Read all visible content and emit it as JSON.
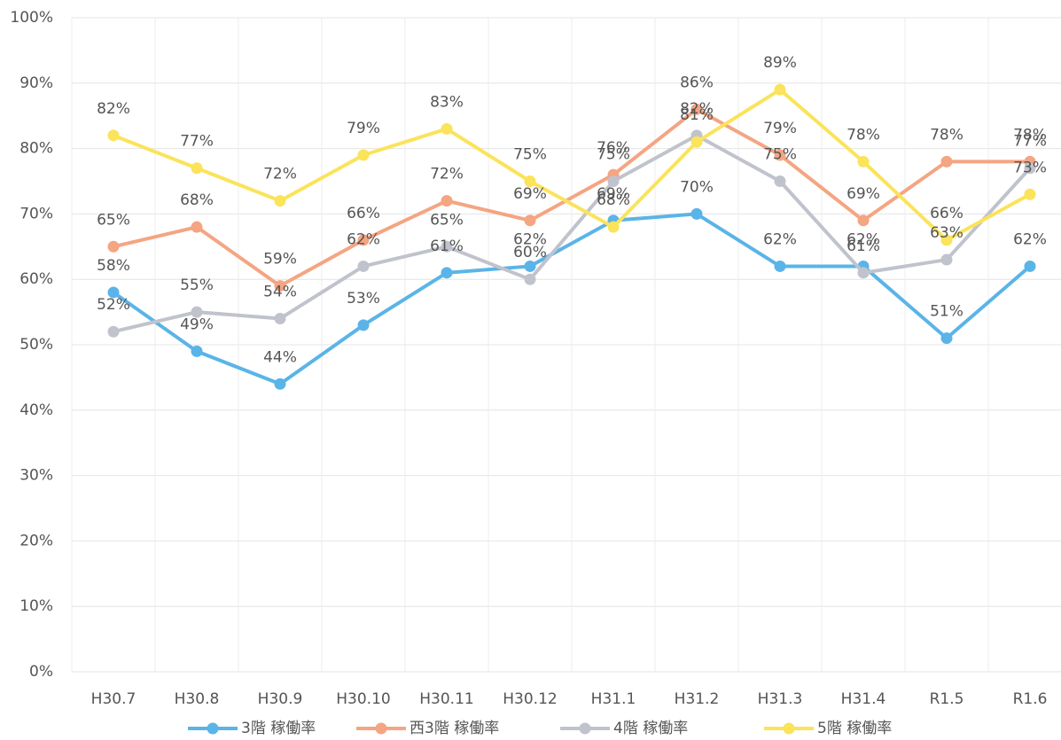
{
  "chart_data": {
    "type": "line",
    "categories": [
      "H30.7",
      "H30.8",
      "H30.9",
      "H30.10",
      "H30.11",
      "H30.12",
      "H31.1",
      "H31.2",
      "H31.3",
      "H31.4",
      "R1.5",
      "R1.6"
    ],
    "series": [
      {
        "name": "3階 稼働率",
        "color": "#5ab4e8",
        "values": [
          58,
          49,
          44,
          53,
          61,
          62,
          69,
          70,
          62,
          62,
          51,
          62
        ],
        "value_labels": [
          "58%",
          "49%",
          "44%",
          "53%",
          "61%",
          "62%",
          "69%",
          "70%",
          "62%",
          "62%",
          "51%",
          "62%"
        ]
      },
      {
        "name": "西3階 稼働率",
        "color": "#f4a582",
        "values": [
          65,
          68,
          59,
          66,
          72,
          69,
          76,
          86,
          79,
          69,
          78,
          78
        ],
        "value_labels": [
          "65%",
          "68%",
          "59%",
          "66%",
          "72%",
          "69%",
          "76%",
          "86%",
          "79%",
          "69%",
          "78%",
          "78%"
        ]
      },
      {
        "name": "4階 稼働率",
        "color": "#c0c3cc",
        "values": [
          52,
          55,
          54,
          62,
          65,
          60,
          75,
          82,
          75,
          61,
          63,
          77
        ],
        "value_labels": [
          "52%",
          "55%",
          "54%",
          "62%",
          "65%",
          "60%",
          "75%",
          "82%",
          "75%",
          "61%",
          "63%",
          "77%"
        ]
      },
      {
        "name": "5階 稼働率",
        "color": "#fbe35a",
        "values": [
          82,
          77,
          72,
          79,
          83,
          75,
          68,
          81,
          89,
          78,
          66,
          73
        ],
        "value_labels": [
          "82%",
          "77%",
          "72%",
          "79%",
          "83%",
          "75%",
          "68%",
          "81%",
          "89%",
          "78%",
          "66%",
          "73%"
        ]
      }
    ],
    "ylim": [
      0,
      100
    ],
    "yticks": [
      {
        "value": 0,
        "label": "0%"
      },
      {
        "value": 10,
        "label": "10%"
      },
      {
        "value": 20,
        "label": "20%"
      },
      {
        "value": 30,
        "label": "30%"
      },
      {
        "value": 40,
        "label": "40%"
      },
      {
        "value": 50,
        "label": "50%"
      },
      {
        "value": 60,
        "label": "60%"
      },
      {
        "value": 70,
        "label": "70%"
      },
      {
        "value": 80,
        "label": "80%"
      },
      {
        "value": 90,
        "label": "90%"
      },
      {
        "value": 100,
        "label": "100%"
      }
    ],
    "grid": true,
    "legend": "bottom"
  }
}
